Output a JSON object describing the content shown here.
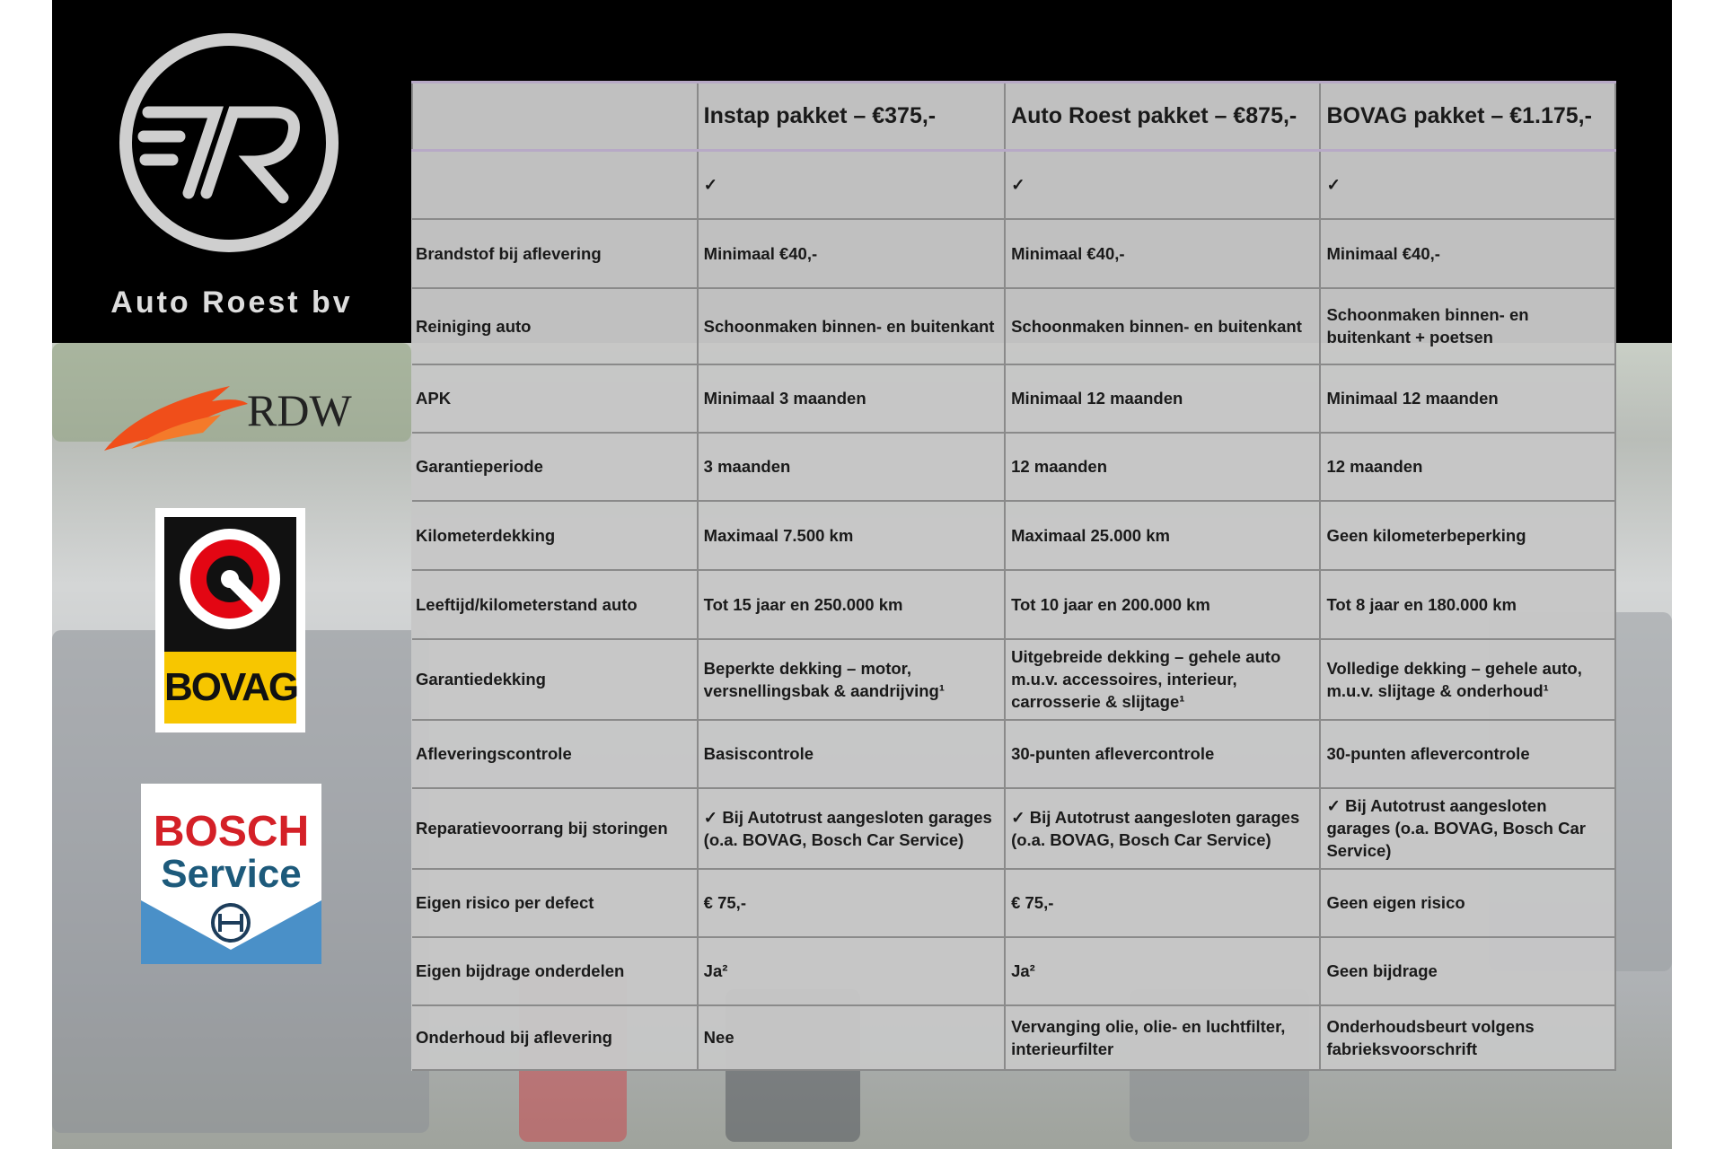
{
  "brand": {
    "name": "Auto Roest bv",
    "logo_monogram": "AR"
  },
  "logos": {
    "rdw": "RDW",
    "bovag": "BOVAG",
    "bosch_line1": "BOSCH",
    "bosch_line2": "Service"
  },
  "table": {
    "headers": [
      "",
      "Instap pakket – €375,-",
      "Auto Roest pakket – €875,-",
      "BOVAG pakket – €1.175,-"
    ],
    "rows": [
      [
        "",
        "✓",
        "✓",
        "✓"
      ],
      [
        "Brandstof bij aflevering",
        "Minimaal €40,-",
        "Minimaal €40,-",
        "Minimaal €40,-"
      ],
      [
        "Reiniging auto",
        "Schoonmaken binnen- en buitenkant",
        "Schoonmaken binnen- en buitenkant",
        "Schoonmaken binnen- en buitenkant + poetsen"
      ],
      [
        "APK",
        "Minimaal 3 maanden",
        "Minimaal 12 maanden",
        "Minimaal 12 maanden"
      ],
      [
        "Garantieperiode",
        "3 maanden",
        "12 maanden",
        "12 maanden"
      ],
      [
        "Kilometerdekking",
        "Maximaal 7.500 km",
        "Maximaal 25.000 km",
        "Geen kilometerbeperking"
      ],
      [
        "Leeftijd/kilometerstand auto",
        "Tot 15 jaar en 250.000 km",
        "Tot 10 jaar en 200.000 km",
        "Tot 8 jaar en 180.000 km"
      ],
      [
        "Garantiedekking",
        "Beperkte dekking – motor, versnellingsbak & aandrijving¹",
        "Uitgebreide dekking – gehele auto m.u.v. accessoires, interieur, carrosserie & slijtage¹",
        "Volledige dekking – gehele auto, m.u.v. slijtage & onderhoud¹"
      ],
      [
        "Afleveringscontrole",
        "Basiscontrole",
        "30-punten aflevercontrole",
        "30-punten aflevercontrole"
      ],
      [
        "Reparatievoorrang bij storingen",
        "✓ Bij Autotrust aangesloten garages (o.a. BOVAG, Bosch Car Service)",
        "✓ Bij Autotrust aangesloten garages (o.a. BOVAG, Bosch Car Service)",
        "✓ Bij Autotrust aangesloten garages (o.a. BOVAG, Bosch Car Service)"
      ],
      [
        "Eigen risico per defect",
        "€ 75,-",
        "€ 75,-",
        "Geen eigen risico"
      ],
      [
        "Eigen bijdrage onderdelen",
        "Ja²",
        "Ja²",
        "Geen bijdrage"
      ],
      [
        "Onderhoud bij aflevering",
        "Nee",
        "Vervanging olie, olie- en luchtfilter, interieurfilter",
        "Onderhoudsbeurt volgens fabrieksvoorschrift"
      ]
    ]
  },
  "colors": {
    "header_band": "#000000",
    "table_bg": "#c6c6c6",
    "bovag_yellow": "#f7c600",
    "bosch_red": "#d42027",
    "rdw_orange": "#f04e1a"
  }
}
